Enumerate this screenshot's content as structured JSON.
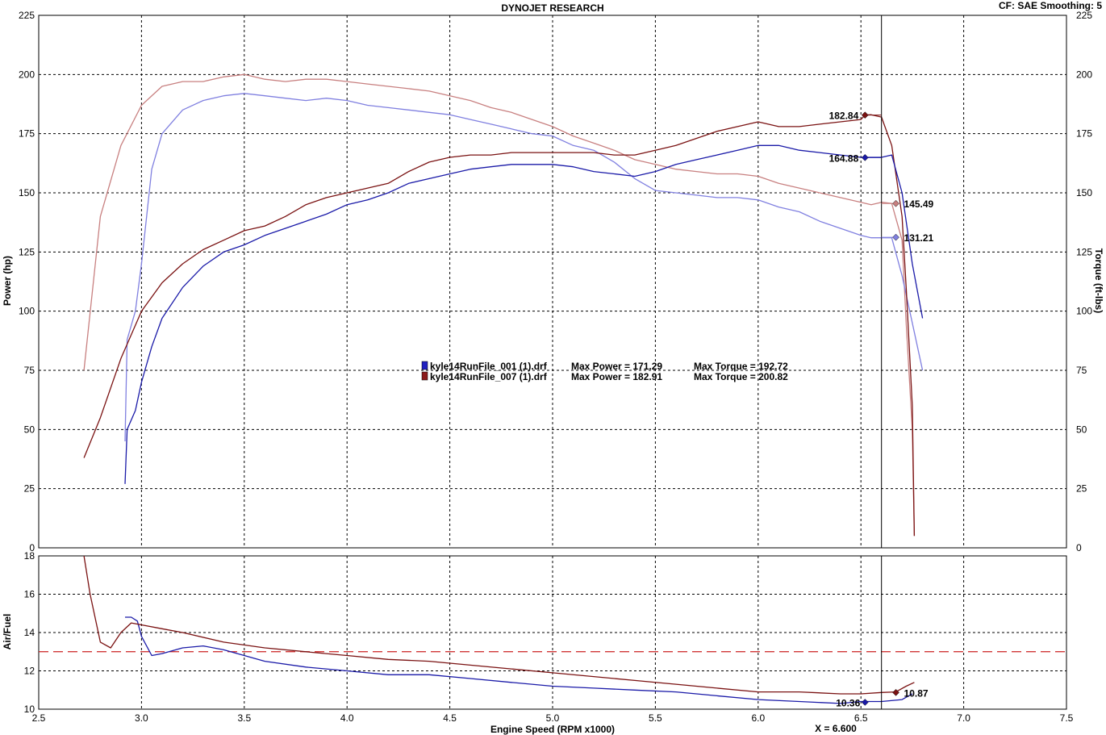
{
  "header": {
    "title": "DYNOJET RESEARCH",
    "correction": "CF: SAE  Smoothing: 5"
  },
  "legend": [
    {
      "file": "kyle14RunFile_001 (1).drf",
      "max_power": "Max Power = 171.29",
      "max_torque": "Max Torque = 192.72",
      "color": "#2020c0"
    },
    {
      "file": "kyle14RunFile_007 (1).drf",
      "max_power": "Max Power = 182.91",
      "max_torque": "Max Torque = 200.82",
      "color": "#8b1a1a"
    }
  ],
  "cursor": {
    "label": "X = 6.600"
  },
  "colors": {
    "run1_power": "#1a1aa8",
    "run1_torque": "#8080e0",
    "run2_power": "#7a1212",
    "run2_torque": "#c88080",
    "afr_target": "#cc2020",
    "grid": "#000000"
  },
  "chart_data": [
    {
      "type": "line",
      "xlabel": "Engine Speed (RPM x1000)",
      "ylabel": "Power (hp)",
      "y2label": "Torque (ft-lbs)",
      "xlim": [
        2.5,
        7.5
      ],
      "ylim": [
        0,
        225
      ],
      "y2lim": [
        0,
        225
      ],
      "xticks": [
        "2.5",
        "3.0",
        "3.5",
        "4.0",
        "4.5",
        "5.0",
        "5.5",
        "6.0",
        "6.5",
        "7.0",
        "7.5"
      ],
      "yticks": [
        "0",
        "25",
        "50",
        "75",
        "100",
        "125",
        "150",
        "175",
        "200",
        "225"
      ],
      "grid": true,
      "series": [
        {
          "name": "kyle14RunFile_001 (1).drf Power",
          "axis": "left",
          "color_key": "run1_power",
          "x": [
            2.92,
            2.93,
            2.97,
            3.0,
            3.05,
            3.1,
            3.2,
            3.3,
            3.4,
            3.5,
            3.6,
            3.7,
            3.8,
            3.9,
            4.0,
            4.1,
            4.2,
            4.3,
            4.4,
            4.5,
            4.6,
            4.7,
            4.8,
            4.9,
            5.0,
            5.1,
            5.2,
            5.3,
            5.4,
            5.5,
            5.6,
            5.7,
            5.8,
            5.9,
            6.0,
            6.1,
            6.2,
            6.3,
            6.4,
            6.5,
            6.55,
            6.6,
            6.65,
            6.7,
            6.75,
            6.8
          ],
          "y": [
            27,
            50,
            58,
            70,
            85,
            97,
            110,
            119,
            125,
            128,
            132,
            135,
            138,
            141,
            145,
            147,
            150,
            154,
            156,
            158,
            160,
            161,
            162,
            162,
            162,
            161,
            159,
            158,
            157,
            159,
            162,
            164,
            166,
            168,
            170,
            170,
            168,
            167,
            166,
            165,
            165,
            165,
            166,
            150,
            120,
            97
          ]
        },
        {
          "name": "kyle14RunFile_001 (1).drf Torque",
          "axis": "right",
          "color_key": "run1_torque",
          "x": [
            2.92,
            2.93,
            2.97,
            3.0,
            3.05,
            3.1,
            3.2,
            3.3,
            3.4,
            3.5,
            3.6,
            3.7,
            3.8,
            3.9,
            4.0,
            4.1,
            4.2,
            4.3,
            4.4,
            4.5,
            4.6,
            4.7,
            4.8,
            4.9,
            5.0,
            5.1,
            5.2,
            5.3,
            5.4,
            5.5,
            5.6,
            5.7,
            5.8,
            5.9,
            6.0,
            6.1,
            6.2,
            6.3,
            6.4,
            6.5,
            6.55,
            6.6,
            6.65,
            6.7,
            6.75,
            6.8
          ],
          "y": [
            45,
            88,
            100,
            120,
            160,
            175,
            185,
            189,
            191,
            192,
            191,
            190,
            189,
            190,
            189,
            187,
            186,
            185,
            184,
            183,
            181,
            179,
            177,
            175,
            174,
            170,
            168,
            163,
            156,
            151,
            150,
            149,
            148,
            148,
            147,
            144,
            142,
            138,
            135,
            132,
            131,
            131,
            131,
            115,
            95,
            75
          ]
        },
        {
          "name": "kyle14RunFile_007 (1).drf Power",
          "axis": "left",
          "color_key": "run2_power",
          "x": [
            2.72,
            2.8,
            2.9,
            3.0,
            3.1,
            3.2,
            3.3,
            3.4,
            3.5,
            3.6,
            3.7,
            3.8,
            3.9,
            4.0,
            4.1,
            4.2,
            4.3,
            4.4,
            4.5,
            4.6,
            4.7,
            4.8,
            4.9,
            5.0,
            5.1,
            5.2,
            5.3,
            5.4,
            5.5,
            5.6,
            5.7,
            5.8,
            5.9,
            6.0,
            6.1,
            6.2,
            6.3,
            6.4,
            6.5,
            6.52,
            6.55,
            6.6,
            6.65,
            6.7,
            6.72,
            6.75,
            6.76
          ],
          "y": [
            38,
            55,
            80,
            100,
            112,
            120,
            126,
            130,
            134,
            136,
            140,
            145,
            148,
            150,
            152,
            154,
            159,
            163,
            165,
            166,
            166,
            167,
            167,
            167,
            167,
            167,
            166,
            166,
            168,
            170,
            173,
            176,
            178,
            180,
            178,
            178,
            179,
            180,
            181,
            182.84,
            183,
            182,
            170,
            140,
            110,
            60,
            5
          ]
        },
        {
          "name": "kyle14RunFile_007 (1).drf Torque",
          "axis": "right",
          "color_key": "run2_torque",
          "x": [
            2.72,
            2.8,
            2.9,
            3.0,
            3.1,
            3.2,
            3.3,
            3.4,
            3.5,
            3.6,
            3.7,
            3.8,
            3.9,
            4.0,
            4.1,
            4.2,
            4.3,
            4.4,
            4.5,
            4.6,
            4.7,
            4.8,
            4.9,
            5.0,
            5.1,
            5.2,
            5.3,
            5.4,
            5.5,
            5.6,
            5.7,
            5.8,
            5.9,
            6.0,
            6.1,
            6.2,
            6.3,
            6.4,
            6.5,
            6.55,
            6.6,
            6.65,
            6.7,
            6.72,
            6.75,
            6.76
          ],
          "y": [
            75,
            140,
            170,
            187,
            195,
            197,
            197,
            199,
            200,
            198,
            197,
            198,
            198,
            197,
            196,
            195,
            194,
            193,
            191,
            189,
            186,
            184,
            181,
            178,
            174,
            171,
            168,
            164,
            162,
            160,
            159,
            158,
            158,
            157,
            154,
            152,
            150,
            148,
            146,
            145,
            146,
            145.49,
            130,
            95,
            50,
            5
          ]
        }
      ],
      "annotations": [
        {
          "text": "182.84",
          "x": 6.52,
          "y": 182.84,
          "color_key": "run2_power"
        },
        {
          "text": "164.88",
          "x": 6.52,
          "y": 164.88,
          "color_key": "run1_power"
        },
        {
          "text": "145.49",
          "x": 6.67,
          "y": 145.49,
          "color_key": "run2_torque"
        },
        {
          "text": "131.21",
          "x": 6.67,
          "y": 131.21,
          "color_key": "run1_torque"
        }
      ]
    },
    {
      "type": "line",
      "xlabel": "Engine Speed (RPM x1000)",
      "ylabel": "Air/Fuel",
      "xlim": [
        2.5,
        7.5
      ],
      "ylim": [
        10,
        18
      ],
      "yticks": [
        "10",
        "12",
        "14",
        "16",
        "18"
      ],
      "grid": true,
      "target": 13,
      "series": [
        {
          "name": "kyle14RunFile_001 (1).drf Air/Fuel",
          "color_key": "run1_power",
          "x": [
            2.92,
            2.95,
            2.98,
            3.0,
            3.05,
            3.1,
            3.2,
            3.3,
            3.4,
            3.5,
            3.6,
            3.8,
            4.0,
            4.2,
            4.4,
            4.6,
            4.8,
            5.0,
            5.2,
            5.4,
            5.6,
            5.8,
            6.0,
            6.2,
            6.4,
            6.5,
            6.6,
            6.7,
            6.75
          ],
          "y": [
            14.8,
            14.8,
            14.6,
            13.8,
            12.8,
            12.9,
            13.2,
            13.3,
            13.1,
            12.8,
            12.5,
            12.2,
            12.0,
            11.8,
            11.8,
            11.6,
            11.4,
            11.2,
            11.1,
            11.0,
            10.9,
            10.7,
            10.5,
            10.4,
            10.3,
            10.4,
            10.4,
            10.5,
            10.8
          ]
        },
        {
          "name": "kyle14RunFile_007 (1).drf Air/Fuel",
          "color_key": "run2_power",
          "x": [
            2.72,
            2.75,
            2.8,
            2.85,
            2.9,
            2.95,
            3.0,
            3.1,
            3.2,
            3.4,
            3.6,
            3.8,
            4.0,
            4.2,
            4.4,
            4.6,
            4.8,
            5.0,
            5.2,
            5.4,
            5.6,
            5.8,
            6.0,
            6.2,
            6.4,
            6.5,
            6.6,
            6.67,
            6.72,
            6.76
          ],
          "y": [
            18,
            16,
            13.5,
            13.2,
            14.0,
            14.5,
            14.4,
            14.2,
            14.0,
            13.5,
            13.2,
            13.0,
            12.8,
            12.6,
            12.5,
            12.3,
            12.1,
            11.9,
            11.7,
            11.5,
            11.3,
            11.1,
            10.9,
            10.9,
            10.8,
            10.8,
            10.87,
            10.9,
            11.2,
            11.4
          ]
        }
      ],
      "annotations": [
        {
          "text": "10.87",
          "x": 6.67,
          "y": 10.87,
          "color_key": "run2_power"
        },
        {
          "text": "10.36",
          "x": 6.52,
          "y": 10.36,
          "color_key": "run1_power"
        }
      ]
    }
  ]
}
